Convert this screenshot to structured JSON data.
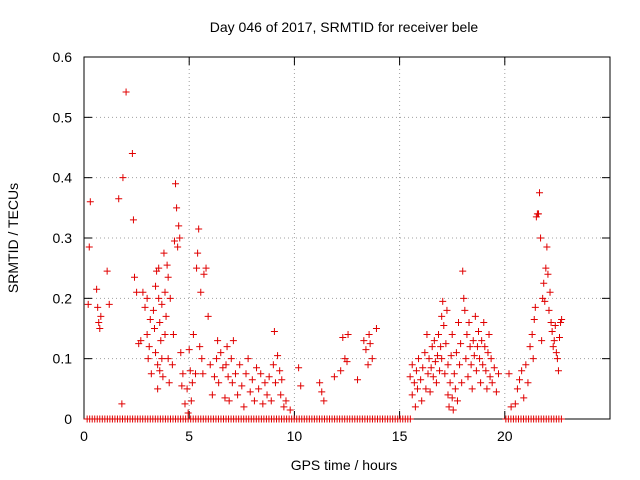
{
  "colors": {
    "series": "#e00000",
    "axis": "#000000",
    "grid": "#a0a0a0"
  },
  "chart_data": {
    "type": "scatter",
    "title": "Day 046 of 2017, SRMTID for receiver bele",
    "xlabel": "GPS time / hours",
    "ylabel": "SRMTID / TECUs",
    "xlim": [
      0,
      25
    ],
    "ylim": [
      0,
      0.6
    ],
    "xticks": [
      0,
      5,
      10,
      15,
      20
    ],
    "xtick_labels": [
      "0",
      "5",
      "10",
      "15",
      "20"
    ],
    "yticks": [
      0,
      0.1,
      0.2,
      0.3,
      0.4,
      0.5,
      0.6
    ],
    "ytick_labels": [
      "0",
      "0.1",
      "0.2",
      "0.3",
      "0.4",
      "0.5",
      "0.6"
    ],
    "grid": true,
    "marker": "plus",
    "series": [
      {
        "name": "SRMTID",
        "points": [
          [
            0.2,
            0.19
          ],
          [
            0.25,
            0.285
          ],
          [
            0.3,
            0.36
          ],
          [
            0.6,
            0.215
          ],
          [
            0.65,
            0.185
          ],
          [
            0.7,
            0.16
          ],
          [
            0.75,
            0.15
          ],
          [
            0.8,
            0.17
          ],
          [
            1.1,
            0.245
          ],
          [
            1.2,
            0.19
          ],
          [
            1.65,
            0.365
          ],
          [
            1.8,
            0.025
          ],
          [
            1.85,
            0.4
          ],
          [
            2.0,
            0.542
          ],
          [
            2.3,
            0.44
          ],
          [
            2.35,
            0.33
          ],
          [
            2.4,
            0.235
          ],
          [
            2.5,
            0.21
          ],
          [
            2.6,
            0.125
          ],
          [
            2.7,
            0.13
          ],
          [
            2.8,
            0.21
          ],
          [
            2.9,
            0.185
          ],
          [
            3.0,
            0.2
          ],
          [
            3.0,
            0.14
          ],
          [
            3.05,
            0.1
          ],
          [
            3.1,
            0.12
          ],
          [
            3.15,
            0.165
          ],
          [
            3.2,
            0.075
          ],
          [
            3.3,
            0.18
          ],
          [
            3.35,
            0.15
          ],
          [
            3.4,
            0.22
          ],
          [
            3.4,
            0.11
          ],
          [
            3.45,
            0.245
          ],
          [
            3.5,
            0.09
          ],
          [
            3.5,
            0.05
          ],
          [
            3.55,
            0.2
          ],
          [
            3.55,
            0.25
          ],
          [
            3.6,
            0.16
          ],
          [
            3.6,
            0.08
          ],
          [
            3.65,
            0.13
          ],
          [
            3.7,
            0.19
          ],
          [
            3.7,
            0.1
          ],
          [
            3.75,
            0.07
          ],
          [
            3.8,
            0.275
          ],
          [
            3.85,
            0.21
          ],
          [
            3.85,
            0.14
          ],
          [
            3.9,
            0.17
          ],
          [
            3.95,
            0.255
          ],
          [
            4.0,
            0.235
          ],
          [
            4.0,
            0.1
          ],
          [
            4.05,
            0.06
          ],
          [
            4.1,
            0.2
          ],
          [
            4.2,
            0.09
          ],
          [
            4.25,
            0.14
          ],
          [
            4.3,
            0.295
          ],
          [
            4.35,
            0.39
          ],
          [
            4.4,
            0.35
          ],
          [
            4.45,
            0.285
          ],
          [
            4.5,
            0.32
          ],
          [
            4.55,
            0.3
          ],
          [
            4.6,
            0.11
          ],
          [
            4.65,
            0.055
          ],
          [
            4.7,
            0.075
          ],
          [
            4.8,
            0.025
          ],
          [
            4.9,
            0.05
          ],
          [
            4.95,
            0.01
          ],
          [
            5.0,
            0.115
          ],
          [
            5.05,
            0.08
          ],
          [
            5.1,
            0.03
          ],
          [
            5.15,
            0.06
          ],
          [
            5.2,
            0.14
          ],
          [
            5.3,
            0.075
          ],
          [
            5.35,
            0.25
          ],
          [
            5.4,
            0.275
          ],
          [
            5.45,
            0.315
          ],
          [
            5.5,
            0.12
          ],
          [
            5.55,
            0.21
          ],
          [
            5.6,
            0.1
          ],
          [
            5.65,
            0.075
          ],
          [
            5.7,
            0.24
          ],
          [
            5.8,
            0.25
          ],
          [
            5.9,
            0.17
          ],
          [
            6.0,
            0.09
          ],
          [
            6.1,
            0.04
          ],
          [
            6.2,
            0.07
          ],
          [
            6.3,
            0.1
          ],
          [
            6.35,
            0.13
          ],
          [
            6.4,
            0.06
          ],
          [
            6.5,
            0.11
          ],
          [
            6.6,
            0.085
          ],
          [
            6.7,
            0.035
          ],
          [
            6.75,
            0.09
          ],
          [
            6.8,
            0.12
          ],
          [
            6.85,
            0.07
          ],
          [
            6.9,
            0.03
          ],
          [
            7.0,
            0.1
          ],
          [
            7.05,
            0.06
          ],
          [
            7.1,
            0.13
          ],
          [
            7.2,
            0.075
          ],
          [
            7.3,
            0.04
          ],
          [
            7.4,
            0.09
          ],
          [
            7.5,
            0.055
          ],
          [
            7.6,
            0.02
          ],
          [
            7.7,
            0.075
          ],
          [
            7.8,
            0.1
          ],
          [
            7.9,
            0.045
          ],
          [
            8.0,
            0.065
          ],
          [
            8.1,
            0.03
          ],
          [
            8.2,
            0.085
          ],
          [
            8.3,
            0.05
          ],
          [
            8.4,
            0.075
          ],
          [
            8.5,
            0.025
          ],
          [
            8.6,
            0.06
          ],
          [
            8.7,
            0.04
          ],
          [
            8.8,
            0.07
          ],
          [
            8.9,
            0.03
          ],
          [
            9.0,
            0.09
          ],
          [
            9.05,
            0.145
          ],
          [
            9.1,
            0.06
          ],
          [
            9.2,
            0.105
          ],
          [
            9.3,
            0.08
          ],
          [
            9.35,
            0.04
          ],
          [
            9.4,
            0.065
          ],
          [
            9.5,
            0.02
          ],
          [
            9.6,
            0.03
          ],
          [
            9.8,
            0.015
          ],
          [
            10.2,
            0.085
          ],
          [
            10.3,
            0.055
          ],
          [
            11.2,
            0.06
          ],
          [
            11.3,
            0.045
          ],
          [
            11.4,
            0.03
          ],
          [
            11.9,
            0.07
          ],
          [
            12.2,
            0.08
          ],
          [
            12.3,
            0.135
          ],
          [
            12.4,
            0.1
          ],
          [
            12.5,
            0.095
          ],
          [
            12.55,
            0.14
          ],
          [
            13.0,
            0.065
          ],
          [
            13.3,
            0.13
          ],
          [
            13.4,
            0.115
          ],
          [
            13.5,
            0.09
          ],
          [
            13.55,
            0.14
          ],
          [
            13.6,
            0.125
          ],
          [
            13.7,
            0.1
          ],
          [
            13.9,
            0.15
          ],
          [
            15.5,
            0.07
          ],
          [
            15.6,
            0.04
          ],
          [
            15.6,
            0.09
          ],
          [
            15.7,
            0.06
          ],
          [
            15.75,
            0.02
          ],
          [
            15.8,
            0.08
          ],
          [
            15.85,
            0.05
          ],
          [
            15.9,
            0.1
          ],
          [
            16.0,
            0.065
          ],
          [
            16.05,
            0.03
          ],
          [
            16.1,
            0.085
          ],
          [
            16.2,
            0.11
          ],
          [
            16.25,
            0.05
          ],
          [
            16.3,
            0.14
          ],
          [
            16.35,
            0.075
          ],
          [
            16.4,
            0.1
          ],
          [
            16.45,
            0.045
          ],
          [
            16.5,
            0.085
          ],
          [
            16.55,
            0.12
          ],
          [
            16.6,
            0.07
          ],
          [
            16.65,
            0.13
          ],
          [
            16.7,
            0.095
          ],
          [
            16.75,
            0.06
          ],
          [
            16.8,
            0.105
          ],
          [
            16.85,
            0.14
          ],
          [
            16.9,
            0.08
          ],
          [
            16.95,
            0.12
          ],
          [
            17.0,
            0.17
          ],
          [
            17.0,
            0.1
          ],
          [
            17.05,
            0.195
          ],
          [
            17.1,
            0.155
          ],
          [
            17.15,
            0.075
          ],
          [
            17.2,
            0.125
          ],
          [
            17.25,
            0.18
          ],
          [
            17.3,
            0.09
          ],
          [
            17.3,
            0.04
          ],
          [
            17.35,
            0.02
          ],
          [
            17.4,
            0.06
          ],
          [
            17.45,
            0.105
          ],
          [
            17.5,
            0.035
          ],
          [
            17.5,
            0.14
          ],
          [
            17.55,
            0.015
          ],
          [
            17.6,
            0.075
          ],
          [
            17.65,
            0.05
          ],
          [
            17.7,
            0.11
          ],
          [
            17.75,
            0.03
          ],
          [
            17.8,
            0.16
          ],
          [
            17.85,
            0.09
          ],
          [
            17.9,
            0.125
          ],
          [
            17.95,
            0.06
          ],
          [
            18.0,
            0.245
          ],
          [
            18.05,
            0.2
          ],
          [
            18.1,
            0.18
          ],
          [
            18.15,
            0.1
          ],
          [
            18.2,
            0.14
          ],
          [
            18.25,
            0.07
          ],
          [
            18.3,
            0.16
          ],
          [
            18.35,
            0.12
          ],
          [
            18.4,
            0.09
          ],
          [
            18.45,
            0.05
          ],
          [
            18.5,
            0.13
          ],
          [
            18.55,
            0.105
          ],
          [
            18.6,
            0.17
          ],
          [
            18.65,
            0.08
          ],
          [
            18.7,
            0.12
          ],
          [
            18.75,
            0.145
          ],
          [
            18.8,
            0.1
          ],
          [
            18.85,
            0.06
          ],
          [
            18.9,
            0.13
          ],
          [
            18.95,
            0.09
          ],
          [
            19.0,
            0.16
          ],
          [
            19.05,
            0.12
          ],
          [
            19.1,
            0.08
          ],
          [
            19.15,
            0.05
          ],
          [
            19.2,
            0.11
          ],
          [
            19.25,
            0.14
          ],
          [
            19.3,
            0.07
          ],
          [
            19.35,
            0.1
          ],
          [
            19.4,
            0.06
          ],
          [
            19.5,
            0.085
          ],
          [
            19.6,
            0.045
          ],
          [
            19.7,
            0.075
          ],
          [
            20.2,
            0.075
          ],
          [
            20.3,
            0.02
          ],
          [
            20.5,
            0.025
          ],
          [
            20.6,
            0.05
          ],
          [
            20.7,
            0.065
          ],
          [
            20.8,
            0.08
          ],
          [
            20.9,
            0.035
          ],
          [
            21.0,
            0.09
          ],
          [
            21.1,
            0.06
          ],
          [
            21.2,
            0.12
          ],
          [
            21.3,
            0.14
          ],
          [
            21.35,
            0.1
          ],
          [
            21.4,
            0.165
          ],
          [
            21.45,
            0.185
          ],
          [
            21.5,
            0.335
          ],
          [
            21.55,
            0.34
          ],
          [
            21.6,
            0.34
          ],
          [
            21.65,
            0.375
          ],
          [
            21.7,
            0.3
          ],
          [
            21.75,
            0.13
          ],
          [
            21.8,
            0.2
          ],
          [
            21.85,
            0.225
          ],
          [
            21.9,
            0.195
          ],
          [
            21.95,
            0.25
          ],
          [
            22.0,
            0.285
          ],
          [
            22.05,
            0.24
          ],
          [
            22.1,
            0.18
          ],
          [
            22.15,
            0.21
          ],
          [
            22.2,
            0.16
          ],
          [
            22.25,
            0.145
          ],
          [
            22.3,
            0.12
          ],
          [
            22.35,
            0.13
          ],
          [
            22.4,
            0.155
          ],
          [
            22.45,
            0.11
          ],
          [
            22.5,
            0.1
          ],
          [
            22.55,
            0.08
          ],
          [
            22.6,
            0.135
          ],
          [
            22.65,
            0.16
          ],
          [
            22.7,
            0.165
          ]
        ],
        "zero_segments": [
          [
            0.15,
            15.55
          ],
          [
            20.05,
            22.75
          ]
        ]
      }
    ]
  }
}
